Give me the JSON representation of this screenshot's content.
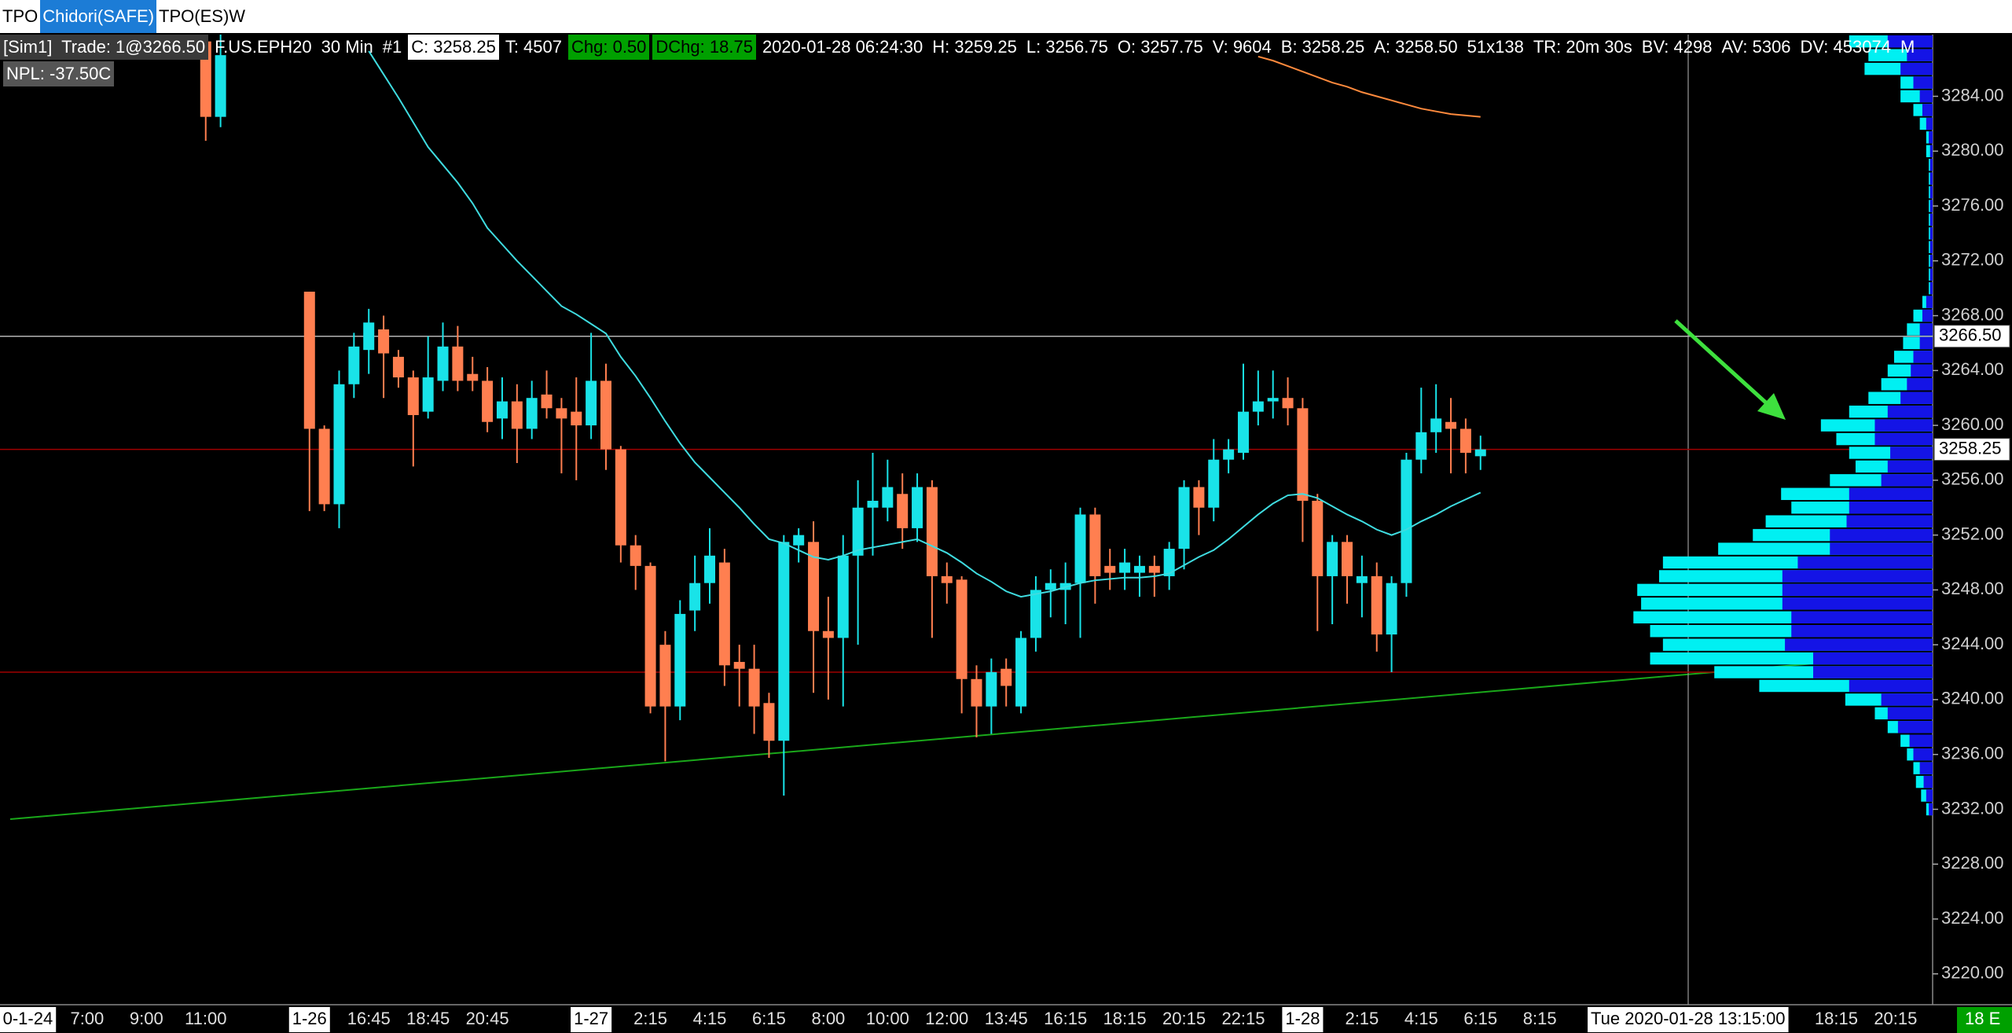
{
  "tabs": [
    {
      "text": "TPO"
    },
    {
      "text": "Chidori(SAFE)",
      "bg": "#1c7cd6",
      "fg": "#ffffff"
    },
    {
      "text": "TPO(ES)W"
    }
  ],
  "info_bar": [
    {
      "text": "[Sim1]  Trade: 1@3266.50",
      "bg": "#3a3a3a"
    },
    {
      "text": "F.US.EPH20"
    },
    {
      "text": "30 Min"
    },
    {
      "text": "#1"
    },
    {
      "text": "C: 3258.25",
      "bg": "#ffffff",
      "fg": "#000000"
    },
    {
      "text": "T: 4507"
    },
    {
      "text": "Chg: 0.50",
      "bg": "#00a000",
      "fg": "#000000"
    },
    {
      "text": "DChg: 18.75",
      "bg": "#00a000",
      "fg": "#000000"
    },
    {
      "text": "2020-01-28 06:24:30"
    },
    {
      "text": "H: 3259.25"
    },
    {
      "text": "L: 3256.75"
    },
    {
      "text": "O: 3257.75"
    },
    {
      "text": "V: 9604"
    },
    {
      "text": "B: 3258.25"
    },
    {
      "text": "A: 3258.50"
    },
    {
      "text": "51x138"
    },
    {
      "text": "TR: 20m 30s"
    },
    {
      "text": "BV: 4298"
    },
    {
      "text": "AV: 5306"
    },
    {
      "text": "DV: 453074"
    },
    {
      "text": "M"
    }
  ],
  "pnl": {
    "text": "NPL: -37.50C",
    "bg": "#555555"
  },
  "chart_data": {
    "type": "candlestick",
    "up_color": "#19e3e8",
    "down_color": "#ff7f50",
    "ylim": [
      3217.75,
      3288.5
    ],
    "yticks": [
      {
        "value": 3220,
        "label": "3220.00"
      },
      {
        "value": 3224,
        "label": "3224.00"
      },
      {
        "value": 3228,
        "label": "3228.00"
      },
      {
        "value": 3232,
        "label": "3232.00"
      },
      {
        "value": 3236,
        "label": "3236.00"
      },
      {
        "value": 3240,
        "label": "3240.00"
      },
      {
        "value": 3244,
        "label": "3244.00"
      },
      {
        "value": 3248,
        "label": "3248.00"
      },
      {
        "value": 3252,
        "label": "3252.00"
      },
      {
        "value": 3256,
        "label": "3256.00"
      },
      {
        "value": 3260,
        "label": "3260.00"
      },
      {
        "value": 3264,
        "label": "3264.00"
      },
      {
        "value": 3268,
        "label": "3268.00"
      },
      {
        "value": 3272,
        "label": "3272.00"
      },
      {
        "value": 3276,
        "label": "3276.00"
      },
      {
        "value": 3280,
        "label": "3280.00"
      },
      {
        "value": 3284,
        "label": "3284.00"
      }
    ],
    "categories": [
      "0-1-24",
      null,
      null,
      null,
      "7:00",
      null,
      null,
      null,
      "9:00",
      null,
      null,
      null,
      "11:00",
      null,
      null,
      null,
      null,
      null,
      null,
      "1-26",
      null,
      null,
      null,
      "16:45",
      null,
      null,
      null,
      "18:45",
      null,
      null,
      null,
      "20:45",
      null,
      null,
      null,
      null,
      null,
      null,
      "1-27",
      null,
      null,
      null,
      "2:15",
      null,
      null,
      null,
      "4:15",
      null,
      null,
      null,
      "6:15",
      null,
      null,
      null,
      "8:00",
      null,
      null,
      null,
      "10:00",
      null,
      null,
      null,
      "12:00",
      null,
      null,
      null,
      "13:45",
      null,
      null,
      null,
      "16:15",
      null,
      null,
      null,
      "18:15",
      null,
      null,
      null,
      "20:15",
      null,
      null,
      null,
      "22:15",
      null,
      null,
      null,
      "1-28",
      null,
      null,
      null,
      "2:15",
      null,
      null,
      null,
      "4:15",
      null,
      null,
      null,
      "6:15",
      null,
      null,
      null,
      "8:15",
      null,
      null,
      null,
      null,
      null,
      null,
      null,
      null,
      null,
      "Tue 2020-01-28 13:15:00",
      null,
      null,
      null,
      null,
      null,
      null,
      null,
      null,
      null,
      "18:15",
      null,
      null,
      null,
      "20:15",
      null,
      null
    ],
    "open": [
      null,
      null,
      null,
      null,
      null,
      null,
      null,
      null,
      null,
      null,
      null,
      null,
      3288,
      3282.5,
      null,
      null,
      null,
      null,
      null,
      3269.75,
      3259.75,
      3254.25,
      3263,
      3265.5,
      3267,
      3265,
      3263.5,
      3261,
      3263.25,
      3265.75,
      3263.75,
      3263.25,
      3260.5,
      3261.75,
      3259.75,
      3262.25,
      3261.25,
      3261,
      3260,
      3263.25,
      3258.25,
      3251.25,
      3249.75,
      3244,
      3239.5,
      3246.5,
      3248.5,
      3250,
      3242.75,
      3242.25,
      3239.75,
      3237,
      3251.25,
      3251.5,
      3245,
      3244.5,
      3250.5,
      3254,
      3254,
      3255,
      3252.5,
      3255.5,
      3249,
      3248.75,
      3241.5,
      3239.5,
      3242.25,
      3239.5,
      3244.5,
      3248,
      3248,
      3248.5,
      3253.5,
      3249.75,
      3249.25,
      3249.25,
      3249.75,
      3249,
      3251,
      3255.5,
      3254,
      3257.5,
      3258,
      3261,
      3261.75,
      3262,
      3261.25,
      3254.5,
      3249,
      3251.5,
      3248.5,
      3249,
      3244.75,
      3248.5,
      3257.5,
      3259.5,
      3260.25,
      3259.75,
      3257.75,
      null,
      null,
      null,
      null,
      null,
      null,
      null,
      null,
      null,
      null,
      null,
      null,
      null,
      null,
      null,
      null,
      null,
      null,
      null,
      null,
      null,
      null,
      null,
      null,
      null,
      null,
      null,
      null,
      null,
      null
    ],
    "high": [
      null,
      null,
      null,
      null,
      null,
      null,
      null,
      null,
      null,
      null,
      null,
      null,
      3289,
      3289,
      null,
      null,
      null,
      null,
      null,
      3269.75,
      3260,
      3264,
      3266.75,
      3268.5,
      3268,
      3265.5,
      3264,
      3266.5,
      3267.5,
      3267.25,
      3265,
      3264.25,
      3263.5,
      3263,
      3263.25,
      3264,
      3262,
      3263.5,
      3266.75,
      3264.5,
      3258.5,
      3252,
      3250,
      3245,
      3247.25,
      3250.5,
      3252.5,
      3251,
      3244,
      3244,
      3240.5,
      3252,
      3252.5,
      3253,
      3247.5,
      3252,
      3256,
      3258,
      3257.5,
      3256.5,
      3256.5,
      3256,
      3250,
      3249,
      3242.5,
      3243,
      3243,
      3245,
      3249,
      3249.5,
      3250,
      3254,
      3254,
      3251,
      3251,
      3250.5,
      3250.5,
      3251.5,
      3256,
      3256,
      3259,
      3259,
      3264.5,
      3264,
      3264,
      3263.5,
      3262,
      3255,
      3252,
      3252,
      3250.5,
      3250,
      3249,
      3258,
      3262.75,
      3263,
      3262,
      3260.5,
      3259.25,
      null,
      null,
      null,
      null,
      null,
      null,
      null,
      null,
      null,
      null,
      null,
      null,
      null,
      null,
      null,
      null,
      null,
      null,
      null,
      null,
      null,
      null,
      null,
      null,
      null,
      null,
      null,
      null,
      null,
      null
    ],
    "low": [
      null,
      null,
      null,
      null,
      null,
      null,
      null,
      null,
      null,
      null,
      null,
      null,
      3280.75,
      3281.75,
      null,
      null,
      null,
      null,
      null,
      3253.75,
      3253.75,
      3252.5,
      3262,
      3263.75,
      3262,
      3262.75,
      3257,
      3260.5,
      3262.5,
      3262.5,
      3262.5,
      3259.5,
      3259,
      3257.25,
      3259,
      3260.5,
      3256.5,
      3256,
      3259,
      3256.75,
      3250,
      3248,
      3239,
      3235.5,
      3238.5,
      3245,
      3247,
      3241,
      3239.5,
      3237.5,
      3235.75,
      3233,
      3250,
      3240.5,
      3240,
      3239.5,
      3244,
      3250.5,
      3253,
      3251,
      3251.5,
      3244.5,
      3247,
      3239,
      3237.25,
      3237.5,
      3239.5,
      3239,
      3243.5,
      3246,
      3245.5,
      3244.5,
      3247,
      3248,
      3248,
      3247.5,
      3247.5,
      3248,
      3249.5,
      3252,
      3253,
      3256.5,
      3257.5,
      3260,
      3260.5,
      3260,
      3251.5,
      3245,
      3245.5,
      3247,
      3246,
      3243.5,
      3242,
      3247.5,
      3256.5,
      3258,
      3256.5,
      3256.5,
      3256.75,
      null,
      null,
      null,
      null,
      null,
      null,
      null,
      null,
      null,
      null,
      null,
      null,
      null,
      null,
      null,
      null,
      null,
      null,
      null,
      null,
      null,
      null,
      null,
      null,
      null,
      null,
      null,
      null,
      null,
      null
    ],
    "close": [
      null,
      null,
      null,
      null,
      null,
      null,
      null,
      null,
      null,
      null,
      null,
      null,
      3282.5,
      3287,
      null,
      null,
      null,
      null,
      null,
      3259.75,
      3254.25,
      3263,
      3265.75,
      3267.5,
      3265.25,
      3263.5,
      3260.75,
      3263.5,
      3265.75,
      3263.25,
      3263.25,
      3260.25,
      3261.75,
      3259.75,
      3262,
      3261.25,
      3260.5,
      3260,
      3263.25,
      3258.25,
      3251.25,
      3249.75,
      3239.5,
      3239.5,
      3246.25,
      3248.5,
      3250.5,
      3242.5,
      3242.25,
      3239.5,
      3237,
      3251.5,
      3252,
      3245,
      3244.5,
      3250.5,
      3254,
      3254.5,
      3255.5,
      3252.5,
      3255.5,
      3249,
      3248.5,
      3241.5,
      3239.5,
      3242,
      3241,
      3244.5,
      3248,
      3248.5,
      3248.5,
      3253.5,
      3249,
      3249.25,
      3250,
      3249.75,
      3249.25,
      3251,
      3255.5,
      3254,
      3257.5,
      3258.25,
      3261,
      3261.75,
      3262,
      3261.25,
      3254.5,
      3249,
      3251.5,
      3249,
      3249,
      3244.75,
      3248.5,
      3257.5,
      3259.5,
      3260.5,
      3259.75,
      3258,
      3258.25,
      null,
      null,
      null,
      null,
      null,
      null,
      null,
      null,
      null,
      null,
      null,
      null,
      null,
      null,
      null,
      null,
      null,
      null,
      null,
      null,
      null,
      null,
      null,
      null,
      null,
      null,
      null,
      null,
      null,
      null
    ],
    "lines": [
      {
        "color": "#3fdce0",
        "values": [
          null,
          null,
          null,
          null,
          null,
          null,
          null,
          null,
          null,
          null,
          null,
          null,
          null,
          null,
          null,
          null,
          null,
          null,
          null,
          null,
          null,
          null,
          null,
          3287.3,
          3285.6,
          3283.9,
          3282.1,
          3280.3,
          3279,
          3277.7,
          3276.2,
          3274.4,
          3273.2,
          3272,
          3270.9,
          3269.8,
          3268.7,
          3268.1,
          3267.4,
          3266.7,
          3265,
          3263.6,
          3262,
          3260.3,
          3258.7,
          3257.3,
          3256.2,
          3255.1,
          3254,
          3252.8,
          3251.7,
          3251.4,
          3250.9,
          3250.4,
          3250.2,
          3250.5,
          3250.9,
          3251.1,
          3251.3,
          3251.5,
          3251.7,
          3251.2,
          3250.7,
          3250,
          3249.2,
          3248.6,
          3247.9,
          3247.5,
          3247.7,
          3247.9,
          3248.2,
          3248.5,
          3248.7,
          3248.8,
          3248.9,
          3248.9,
          3249,
          3249.2,
          3249.8,
          3250.4,
          3250.9,
          3251.7,
          3252.6,
          3253.5,
          3254.3,
          3254.9,
          3255,
          3254.7,
          3254.1,
          3253.5,
          3253,
          3252.4,
          3252,
          3252.4,
          3253,
          3253.5,
          3254.1,
          3254.6,
          3255.1,
          null,
          null,
          null,
          null,
          null,
          null,
          null,
          null,
          null,
          null,
          null,
          null,
          null,
          null,
          null,
          null,
          null,
          null,
          null,
          null,
          null,
          null,
          null,
          null,
          null,
          null,
          null,
          null,
          null,
          null
        ]
      },
      {
        "color": "#ff8a3d",
        "values": [
          null,
          null,
          null,
          null,
          null,
          null,
          null,
          null,
          null,
          null,
          null,
          null,
          null,
          null,
          null,
          null,
          null,
          null,
          null,
          null,
          null,
          null,
          null,
          null,
          null,
          null,
          null,
          null,
          null,
          null,
          null,
          null,
          null,
          null,
          null,
          null,
          null,
          null,
          null,
          null,
          null,
          null,
          null,
          null,
          null,
          null,
          null,
          null,
          null,
          null,
          null,
          null,
          null,
          null,
          null,
          null,
          null,
          null,
          null,
          null,
          null,
          null,
          null,
          null,
          null,
          null,
          null,
          null,
          null,
          null,
          null,
          null,
          null,
          null,
          null,
          null,
          null,
          null,
          null,
          null,
          null,
          null,
          null,
          3286.9,
          3286.6,
          3286.2,
          3285.8,
          3285.4,
          3285,
          3284.7,
          3284.3,
          3284,
          3283.7,
          3283.4,
          3283.1,
          3282.9,
          3282.7,
          3282.6,
          3282.5,
          null,
          null,
          null,
          null,
          null,
          null,
          null,
          null,
          null,
          null,
          null,
          null,
          null,
          null,
          null,
          null,
          null,
          null,
          null,
          null,
          null,
          null,
          null,
          null,
          null,
          null,
          null,
          null,
          null,
          null
        ]
      }
    ],
    "levels": [
      {
        "value": 3266.5,
        "label": "3266.50",
        "color": "#b4b4b4"
      },
      {
        "value": 3258.25,
        "label": "3258.25",
        "color": "#a00000"
      },
      {
        "value": 3242,
        "color": "#a00000"
      }
    ],
    "profile": {
      "total_color": "#00f0f2",
      "part_color": "#1414e6",
      "prices": [
        3288,
        3287,
        3286,
        3285,
        3284,
        3283,
        3282,
        3281,
        3280,
        3279,
        3278,
        3277,
        3276,
        3275,
        3274,
        3273,
        3272,
        3271,
        3270,
        3269,
        3268,
        3267,
        3266,
        3265,
        3264,
        3263,
        3262,
        3261,
        3260,
        3259,
        3258,
        3257,
        3256,
        3255,
        3254,
        3253,
        3252,
        3251,
        3250,
        3249,
        3248,
        3247,
        3246,
        3245,
        3244,
        3243,
        3242,
        3241,
        3240,
        3239,
        3238,
        3237,
        3236,
        3235,
        3234,
        3233,
        3232
      ],
      "totals": [
        65,
        50,
        53,
        25,
        25,
        15,
        10,
        5,
        5,
        3,
        3,
        3,
        3,
        3,
        3,
        3,
        3,
        3,
        3,
        8,
        15,
        20,
        23,
        30,
        35,
        40,
        50,
        65,
        87,
        75,
        65,
        60,
        80,
        118,
        110,
        130,
        140,
        167,
        210,
        213,
        230,
        227,
        233,
        220,
        210,
        220,
        170,
        135,
        68,
        45,
        35,
        25,
        20,
        15,
        13,
        9,
        5
      ],
      "parts": [
        35,
        20,
        25,
        15,
        10,
        8,
        5,
        3,
        2,
        2,
        2,
        2,
        2,
        2,
        2,
        2,
        2,
        2,
        2,
        5,
        8,
        10,
        10,
        15,
        17,
        20,
        25,
        35,
        45,
        45,
        33,
        35,
        40,
        65,
        65,
        67,
        80,
        80,
        105,
        117,
        117,
        117,
        110,
        110,
        115,
        93,
        93,
        65,
        40,
        35,
        27,
        18,
        15,
        10,
        7,
        5,
        3
      ]
    },
    "corner_label": "18 E"
  }
}
